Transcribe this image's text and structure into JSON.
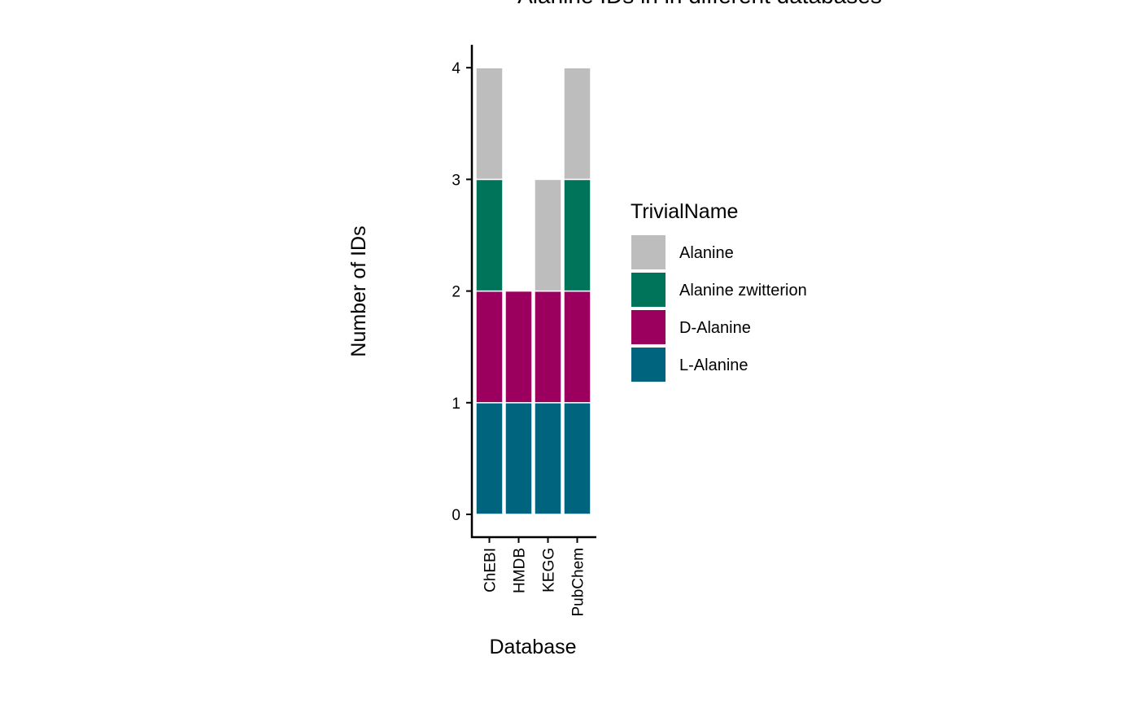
{
  "chart_data": {
    "type": "bar",
    "stacked": true,
    "title": "Alanine IDs in in different databases",
    "xlabel": "Database",
    "ylabel": "Number of IDs",
    "categories": [
      "ChEBI",
      "HMDB",
      "KEGG",
      "PubChem"
    ],
    "yticks": [
      "0",
      "1",
      "2",
      "3",
      "4"
    ],
    "ylim": [
      0,
      4.2
    ],
    "grid": false,
    "legend": {
      "title": "TrivialName",
      "placement": "right"
    },
    "series": [
      {
        "name": "L-Alanine",
        "color": "#00647f",
        "values": [
          1,
          1,
          1,
          1
        ]
      },
      {
        "name": "D-Alanine",
        "color": "#9b005e",
        "values": [
          1,
          1,
          1,
          1
        ]
      },
      {
        "name": "Alanine zwitterion",
        "color": "#00735b",
        "values": [
          1,
          0,
          0,
          1
        ]
      },
      {
        "name": "Alanine",
        "color": "#bdbdbd",
        "values": [
          1,
          0,
          1,
          1
        ]
      }
    ],
    "legend_order": [
      "Alanine",
      "Alanine zwitterion",
      "D-Alanine",
      "L-Alanine"
    ]
  }
}
